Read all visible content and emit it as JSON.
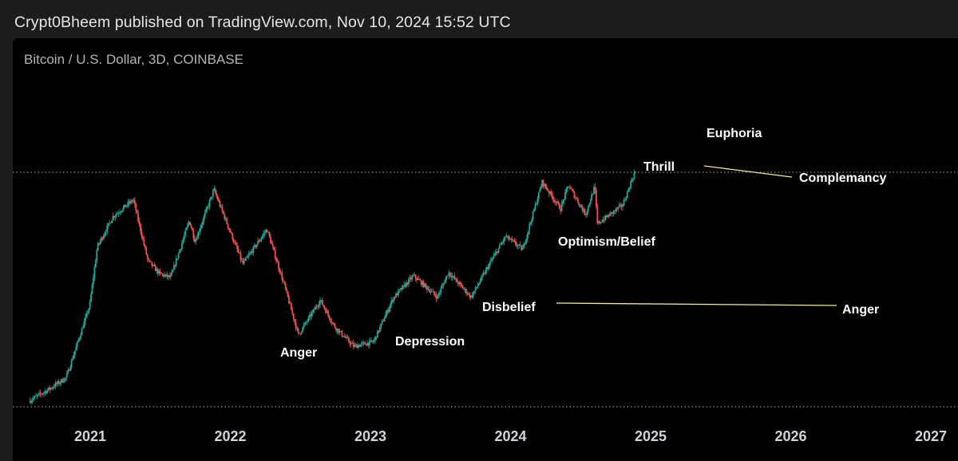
{
  "header": {
    "publish_line": "Crypt0Bheem published on TradingView.com, Nov 10, 2024 15:52 UTC"
  },
  "chart": {
    "symbol_line": "Bitcoin / U.S. Dollar, 3D, COINBASE"
  },
  "colors": {
    "up": "#26a69a",
    "down": "#ef5350",
    "annotation_line": "#f3e9a2",
    "text": "#ffffff",
    "tick_text": "#d1d4dc",
    "guide": "#cfcfcf",
    "background": "#000000"
  },
  "chart_data": {
    "type": "candlestick",
    "title": "Bitcoin / U.S. Dollar, 3D, COINBASE",
    "x_tick_labels": [
      "2021",
      "2022",
      "2023",
      "2024",
      "2025",
      "2026",
      "2027"
    ],
    "x_range": [
      "2020-07-15",
      "2027-01-01"
    ],
    "y_range_approx": [
      9000,
      75000
    ],
    "price_guides": [
      {
        "style": "dotted",
        "level": "current high"
      },
      {
        "style": "dotted",
        "level": "chart low"
      }
    ],
    "anchors": [
      [
        "2020-07-15",
        9500
      ],
      [
        "2020-09-01",
        10500
      ],
      [
        "2020-10-20",
        11800
      ],
      [
        "2020-12-20",
        23000
      ],
      [
        "2021-01-10",
        40000
      ],
      [
        "2021-02-20",
        53000
      ],
      [
        "2021-04-14",
        62000
      ],
      [
        "2021-05-22",
        35000
      ],
      [
        "2021-06-22",
        31000
      ],
      [
        "2021-07-20",
        30000
      ],
      [
        "2021-09-07",
        51000
      ],
      [
        "2021-09-22",
        42000
      ],
      [
        "2021-11-10",
        68000
      ],
      [
        "2021-12-20",
        47000
      ],
      [
        "2022-01-24",
        34000
      ],
      [
        "2022-03-28",
        47000
      ],
      [
        "2022-05-12",
        28000
      ],
      [
        "2022-06-18",
        17600
      ],
      [
        "2022-08-14",
        24300
      ],
      [
        "2022-09-20",
        19000
      ],
      [
        "2022-11-09",
        15800
      ],
      [
        "2022-12-31",
        16500
      ],
      [
        "2023-02-20",
        24800
      ],
      [
        "2023-04-14",
        30500
      ],
      [
        "2023-06-15",
        25000
      ],
      [
        "2023-07-14",
        31500
      ],
      [
        "2023-09-11",
        25000
      ],
      [
        "2023-10-31",
        34500
      ],
      [
        "2023-12-10",
        44000
      ],
      [
        "2024-01-23",
        39000
      ],
      [
        "2024-03-14",
        73000
      ],
      [
        "2024-05-01",
        57000
      ],
      [
        "2024-05-21",
        71000
      ],
      [
        "2024-07-05",
        54000
      ],
      [
        "2024-07-29",
        70000
      ],
      [
        "2024-08-05",
        49500
      ],
      [
        "2024-10-10",
        59000
      ],
      [
        "2024-11-10",
        80000
      ]
    ],
    "annotations": [
      {
        "label": "Euphoria",
        "date": "2025-07-01",
        "price_level": "above current high"
      },
      {
        "label": "Thrill",
        "date": "2025-01-15",
        "price_level": "at current high"
      },
      {
        "label": "Complemancy",
        "date": "2026-01-15",
        "price_level": "at current high"
      },
      {
        "label": "Optimism/Belief",
        "date": "2024-06-15",
        "price_level": "mid"
      },
      {
        "label": "Disbelief",
        "date": "2023-11-25",
        "price_level": "low-mid"
      },
      {
        "label": "Anger",
        "date": "2026-06-01",
        "price_level": "low-mid"
      },
      {
        "label": "Depression",
        "date": "2023-03-25",
        "price_level": "low"
      },
      {
        "label": "Anger",
        "date": "2022-07-10",
        "price_level": "low"
      }
    ],
    "annotation_lines": [
      {
        "from_label": "Thrill",
        "to_label": "Complemancy"
      },
      {
        "from_label": "Disbelief",
        "to_label": "Anger"
      }
    ]
  }
}
